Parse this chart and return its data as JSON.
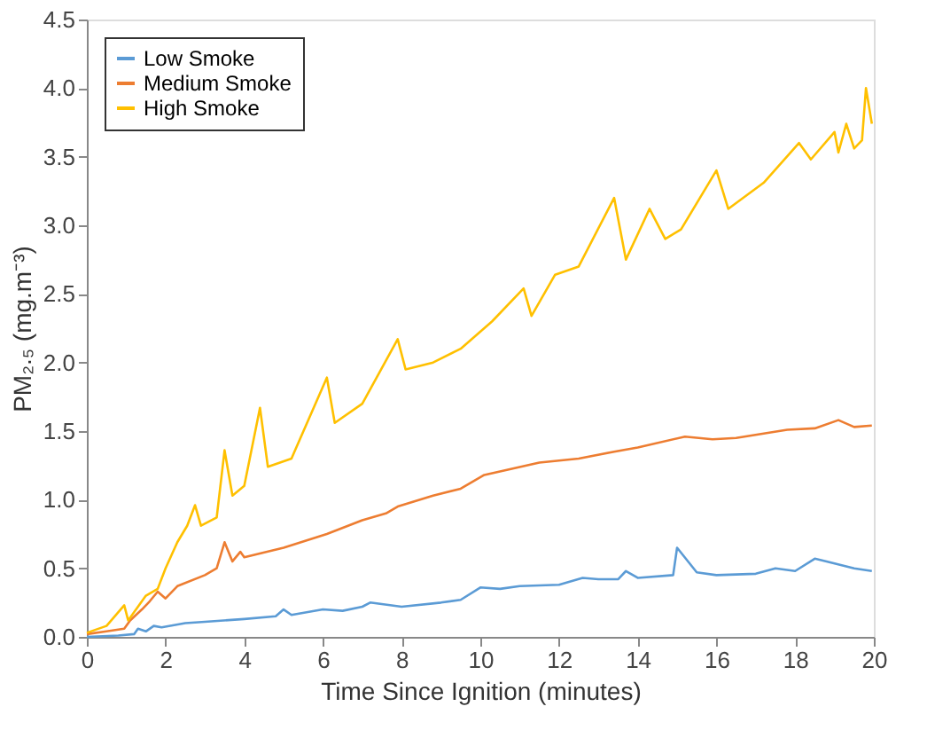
{
  "chart_data": {
    "type": "line",
    "xlabel": "Time Since Ignition (minutes)",
    "ylabel": "PM₂.₅ (mg.m⁻³)",
    "xlim": [
      0,
      20
    ],
    "xticks": [
      0,
      2,
      4,
      6,
      8,
      10,
      12,
      14,
      16,
      18,
      20
    ],
    "ylim": [
      0,
      4.5
    ],
    "yticks": [
      {
        "value": 0,
        "label": "0.0"
      },
      0.5,
      {
        "value": 1,
        "label": "1.0"
      },
      1.5,
      {
        "value": 2,
        "label": "2.0"
      },
      2.5,
      {
        "value": 3,
        "label": "3.0"
      },
      3.5,
      {
        "value": 4,
        "label": "4.0"
      },
      4.5
    ],
    "grid": false,
    "legend": "top left",
    "marker": "none",
    "line_style": "solid",
    "series": [
      {
        "name": "Low Smoke",
        "color": "#5b9bd5",
        "x": [
          0,
          0.8,
          1.2,
          1.3,
          1.5,
          1.7,
          1.9,
          2.5,
          3,
          4,
          4.8,
          5.0,
          5.2,
          6,
          6.5,
          7.0,
          7.2,
          8,
          9,
          9.5,
          10.0,
          10.5,
          11,
          12,
          12.6,
          13,
          13.5,
          13.7,
          14,
          14.9,
          15.0,
          15.5,
          16,
          17,
          17.5,
          18,
          18.5,
          18.8,
          19.5,
          19.95
        ],
        "values": [
          0.0,
          0.01,
          0.02,
          0.06,
          0.04,
          0.08,
          0.07,
          0.1,
          0.11,
          0.13,
          0.15,
          0.2,
          0.16,
          0.2,
          0.19,
          0.22,
          0.25,
          0.22,
          0.25,
          0.27,
          0.36,
          0.35,
          0.37,
          0.38,
          0.43,
          0.42,
          0.42,
          0.48,
          0.43,
          0.45,
          0.65,
          0.47,
          0.45,
          0.46,
          0.5,
          0.48,
          0.57,
          0.55,
          0.5,
          0.48
        ]
      },
      {
        "name": "Medium Smoke",
        "color": "#ed7d31",
        "x": [
          0,
          0.5,
          0.95,
          1.1,
          1.4,
          1.6,
          1.8,
          2.0,
          2.3,
          3.0,
          3.3,
          3.5,
          3.7,
          3.9,
          4.0,
          5,
          6.1,
          7,
          7.6,
          7.9,
          8.8,
          9.5,
          10.1,
          11.5,
          12.5,
          13.4,
          14,
          15.2,
          15.9,
          16.5,
          17.8,
          18.5,
          19.1,
          19.5,
          19.95
        ],
        "values": [
          0.02,
          0.04,
          0.06,
          0.12,
          0.2,
          0.26,
          0.33,
          0.28,
          0.37,
          0.45,
          0.5,
          0.69,
          0.55,
          0.62,
          0.58,
          0.65,
          0.75,
          0.85,
          0.9,
          0.95,
          1.03,
          1.08,
          1.18,
          1.27,
          1.3,
          1.35,
          1.38,
          1.46,
          1.44,
          1.45,
          1.51,
          1.52,
          1.58,
          1.53,
          1.54
        ]
      },
      {
        "name": "High Smoke",
        "color": "#ffc000",
        "x": [
          0,
          0.5,
          0.95,
          1.05,
          1.5,
          1.8,
          2.0,
          2.3,
          2.55,
          2.75,
          2.9,
          3.3,
          3.5,
          3.7,
          4.0,
          4.4,
          4.6,
          5.2,
          6.1,
          6.3,
          7.0,
          7.9,
          8.1,
          8.8,
          9.5,
          10.3,
          11.1,
          11.3,
          11.9,
          12.5,
          13.4,
          13.7,
          14.3,
          14.7,
          15.1,
          16.0,
          16.3,
          17.2,
          18.1,
          18.4,
          19.0,
          19.1,
          19.3,
          19.5,
          19.7,
          19.8,
          19.95
        ],
        "values": [
          0.03,
          0.08,
          0.23,
          0.12,
          0.3,
          0.35,
          0.5,
          0.69,
          0.81,
          0.96,
          0.81,
          0.87,
          1.36,
          1.03,
          1.1,
          1.67,
          1.24,
          1.3,
          1.89,
          1.56,
          1.7,
          2.17,
          1.95,
          2.0,
          2.1,
          2.3,
          2.54,
          2.34,
          2.64,
          2.7,
          3.2,
          2.75,
          3.12,
          2.9,
          2.97,
          3.4,
          3.12,
          3.31,
          3.6,
          3.48,
          3.68,
          3.53,
          3.74,
          3.56,
          3.62,
          4.0,
          3.74
        ]
      }
    ]
  }
}
